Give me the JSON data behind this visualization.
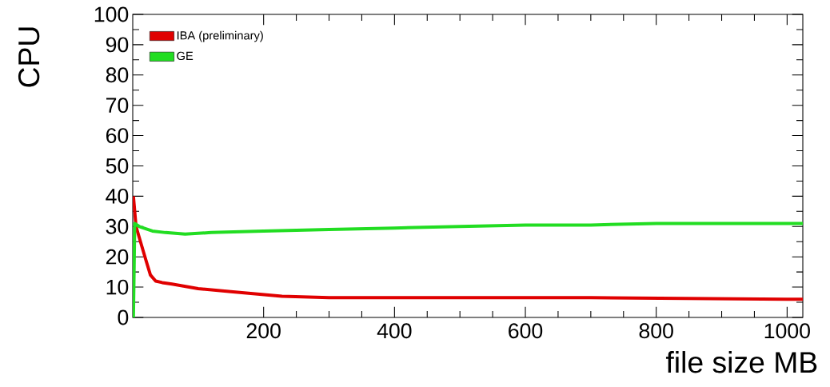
{
  "chart_data": {
    "type": "line",
    "xlabel": "file size MB",
    "ylabel": "CPU",
    "xlim": [
      0,
      1024
    ],
    "ylim": [
      0,
      100
    ],
    "xticks": [
      200,
      400,
      600,
      800,
      1000
    ],
    "yticks": [
      0,
      10,
      20,
      30,
      40,
      50,
      60,
      70,
      80,
      90,
      100
    ],
    "legend": "top left",
    "grid": false,
    "marker": "none",
    "line_style": "solid",
    "series": [
      {
        "name": "IBA (preliminary)",
        "color": "#e00000",
        "x": [
          1,
          5,
          11,
          20,
          27,
          35,
          45,
          60,
          100,
          150,
          228,
          300,
          400,
          500,
          700,
          1000,
          1024
        ],
        "values": [
          40,
          30,
          25.6,
          19,
          14,
          12,
          11.5,
          11,
          9.5,
          8.5,
          7,
          6.5,
          6.5,
          6.5,
          6.5,
          6,
          6
        ]
      },
      {
        "name": "GE",
        "color": "#22dd22",
        "x": [
          1,
          2,
          3,
          10,
          30,
          50,
          80,
          120,
          200,
          300,
          400,
          500,
          600,
          700,
          800,
          1024
        ],
        "values": [
          0,
          15,
          31,
          30,
          28.5,
          28,
          27.5,
          28,
          28.5,
          29,
          29.5,
          30,
          30.5,
          30.5,
          31,
          31
        ]
      }
    ]
  }
}
